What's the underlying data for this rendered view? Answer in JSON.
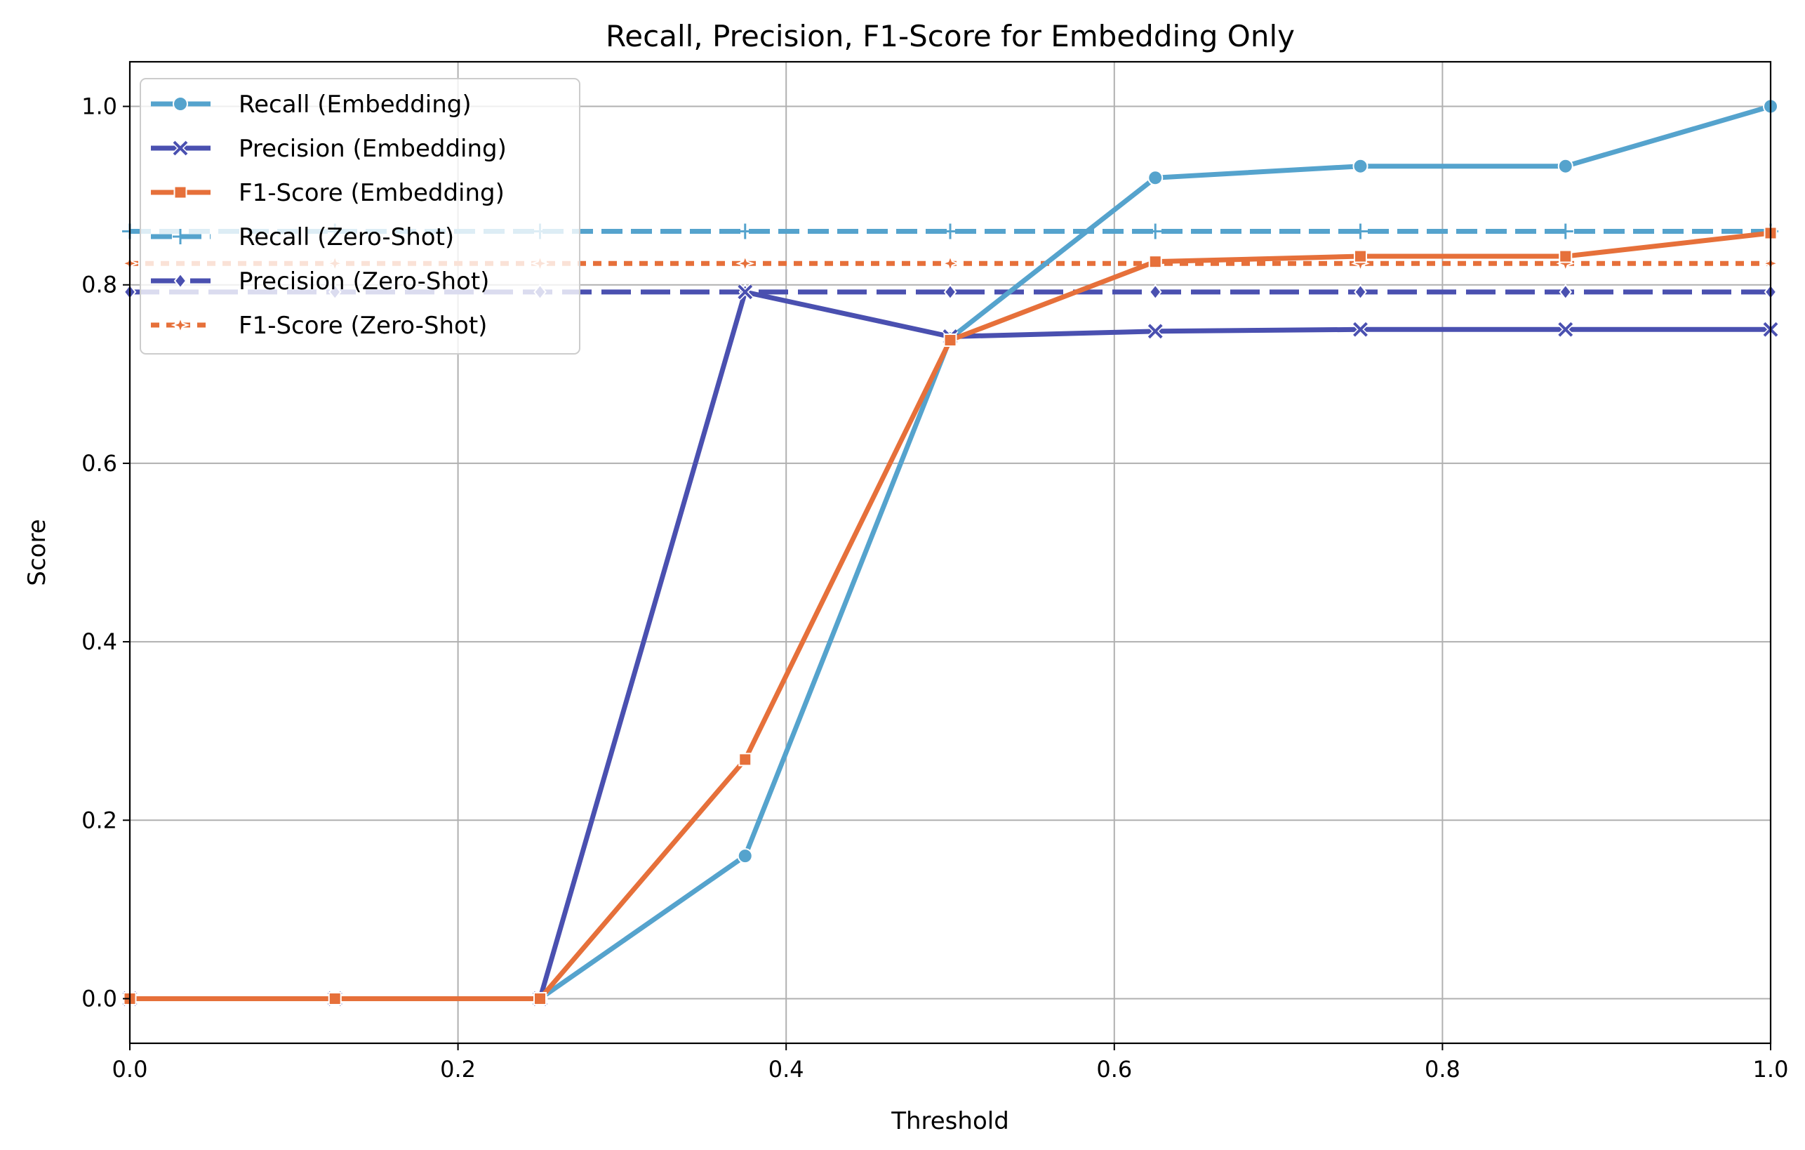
{
  "chart_data": {
    "type": "line",
    "title": "Recall, Precision, F1-Score for Embedding Only",
    "xlabel": "Threshold",
    "ylabel": "Score",
    "xlim": [
      0.0,
      1.0
    ],
    "ylim": [
      -0.05,
      1.05
    ],
    "xticks": [
      "0.0",
      "0.2",
      "0.4",
      "0.6",
      "0.8",
      "1.0"
    ],
    "yticks": [
      "0.0",
      "0.2",
      "0.4",
      "0.6",
      "0.8",
      "1.0"
    ],
    "grid": true,
    "legend_position": "upper-left",
    "x": [
      0.0,
      0.125,
      0.25,
      0.375,
      0.5,
      0.625,
      0.75,
      0.875,
      1.0
    ],
    "series": [
      {
        "name": "Recall (Embedding)",
        "values": [
          0.0,
          0.0,
          0.0,
          0.16,
          0.74,
          0.92,
          0.933,
          0.933,
          1.0
        ],
        "color": "#55a3cd",
        "style": "solid",
        "marker": "circle"
      },
      {
        "name": "Precision (Embedding)",
        "values": [
          0.0,
          0.0,
          0.0,
          0.792,
          0.742,
          0.748,
          0.75,
          0.75,
          0.75
        ],
        "color": "#4a50b0",
        "style": "solid",
        "marker": "x"
      },
      {
        "name": "F1-Score (Embedding)",
        "values": [
          0.0,
          0.0,
          0.0,
          0.268,
          0.738,
          0.826,
          0.832,
          0.832,
          0.858
        ],
        "color": "#e6703a",
        "style": "solid",
        "marker": "square"
      },
      {
        "name": "Recall (Zero-Shot)",
        "values": [
          0.86,
          0.86,
          0.86,
          0.86,
          0.86,
          0.86,
          0.86,
          0.86,
          0.86
        ],
        "color": "#55a3cd",
        "style": "dashed",
        "marker": "plus"
      },
      {
        "name": "Precision (Zero-Shot)",
        "values": [
          0.792,
          0.792,
          0.792,
          0.792,
          0.792,
          0.792,
          0.792,
          0.792,
          0.792
        ],
        "color": "#4a50b0",
        "style": "longdash",
        "marker": "diamond"
      },
      {
        "name": "F1-Score (Zero-Shot)",
        "values": [
          0.824,
          0.824,
          0.824,
          0.824,
          0.824,
          0.824,
          0.824,
          0.824,
          0.824
        ],
        "color": "#e6703a",
        "style": "dotted",
        "marker": "star"
      }
    ]
  }
}
